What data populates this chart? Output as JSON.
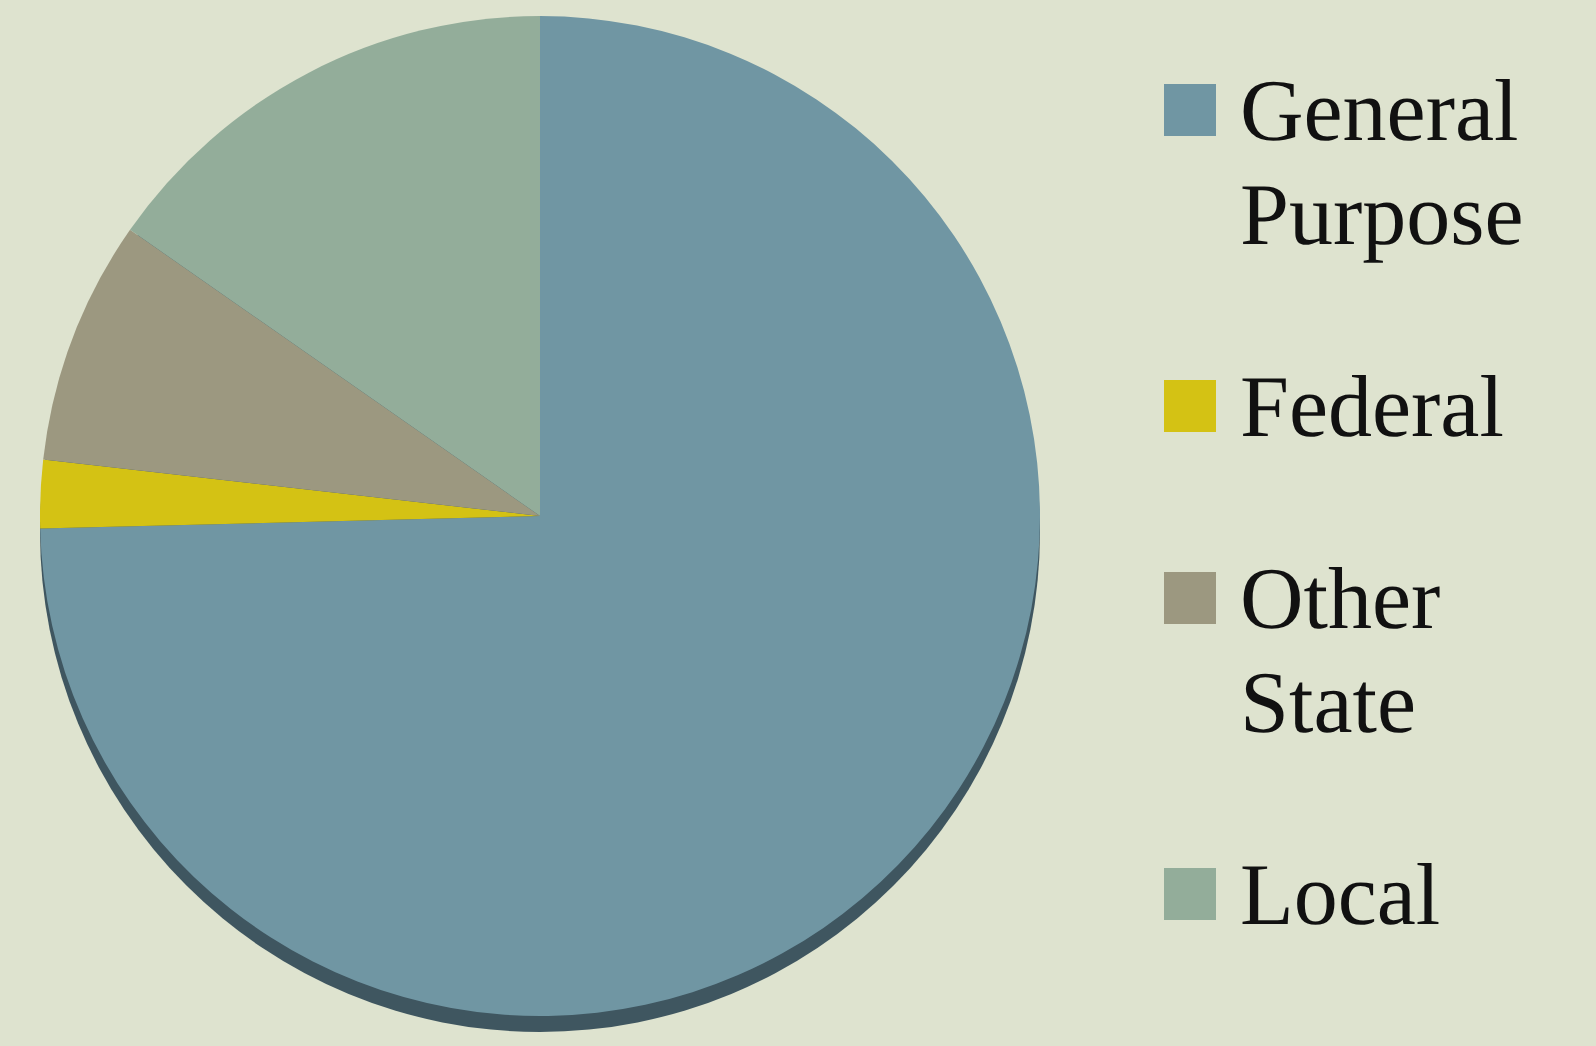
{
  "chart_data": {
    "type": "pie",
    "categories": [
      "General Purpose",
      "Federal",
      "Other State",
      "Local"
    ],
    "values": [
      74.6,
      2.2,
      7.9,
      15.3
    ],
    "colors": [
      "#7096a3",
      "#d4c214",
      "#9c9880",
      "#93ad9a"
    ],
    "legend": "right"
  }
}
